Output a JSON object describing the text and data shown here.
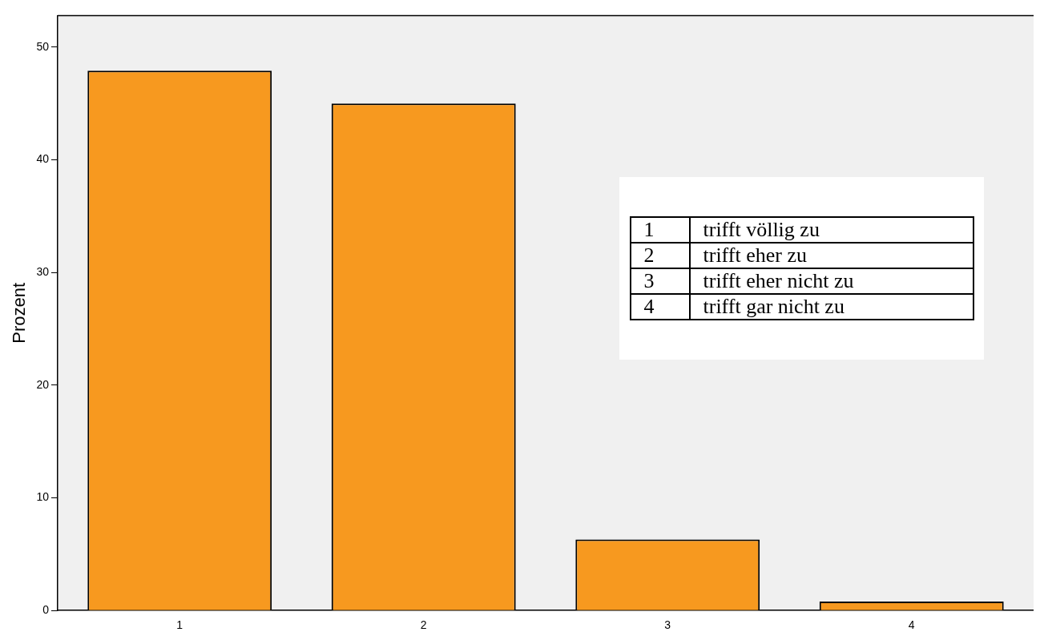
{
  "chart_data": {
    "type": "bar",
    "ylabel": "Prozent",
    "categories": [
      "1",
      "2",
      "3",
      "4"
    ],
    "values": [
      47.9,
      45.0,
      6.3,
      0.8
    ],
    "color": "#f7991f",
    "ylim": [
      0,
      52.8
    ],
    "yticks": [
      0,
      10,
      20,
      30,
      40,
      50
    ],
    "grid": false,
    "annotations": [
      "trifft völlig zu",
      "trifft eher zu",
      "trifft eher nicht zu",
      "trifft gar nicht zu"
    ]
  }
}
